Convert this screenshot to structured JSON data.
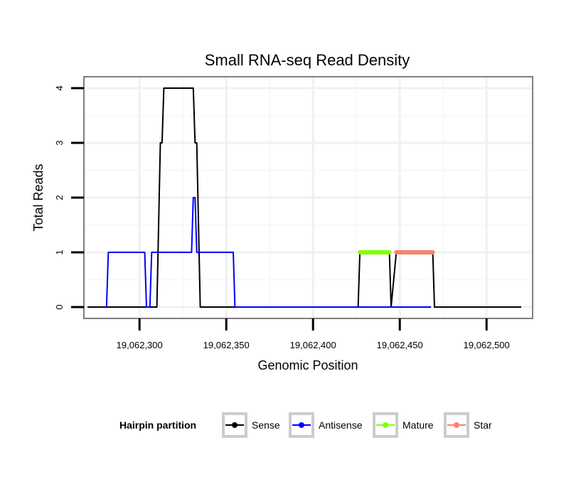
{
  "chart_data": {
    "type": "line",
    "title": "Small RNA-seq Read Density",
    "xlabel": "Genomic Position",
    "ylabel": "Total Reads",
    "xlim": [
      19062270,
      19062520
    ],
    "ylim": [
      0,
      4
    ],
    "x_ticks": [
      19062300,
      19062350,
      19062400,
      19062450,
      19062500
    ],
    "x_tick_labels": [
      "19,062,300",
      "19,062,350",
      "19,062,400",
      "19,062,450",
      "19,062,500"
    ],
    "y_ticks": [
      0,
      1,
      2,
      3,
      4
    ],
    "y_tick_labels": [
      "0",
      "1",
      "2",
      "3",
      "4"
    ],
    "legend_title": "Hairpin partition",
    "legend_position": "bottom",
    "series": [
      {
        "name": "Sense",
        "color": "#000000",
        "x": [
          19062270,
          19062310,
          19062312,
          19062313,
          19062314,
          19062316,
          19062331,
          19062332,
          19062333,
          19062335,
          19062426,
          19062427,
          19062444,
          19062445,
          19062448,
          19062469,
          19062470,
          19062520
        ],
        "y": [
          0,
          0,
          3,
          3,
          4,
          4,
          4,
          3,
          3,
          0,
          0,
          1,
          1,
          0,
          1,
          1,
          0,
          0
        ]
      },
      {
        "name": "Antisense",
        "color": "#0000ff",
        "x": [
          19062281,
          19062282,
          19062303,
          19062304,
          19062306,
          19062307,
          19062330,
          19062331,
          19062332,
          19062333,
          19062354,
          19062355,
          19062468
        ],
        "y": [
          0,
          1,
          1,
          0,
          0,
          1,
          1,
          2,
          2,
          1,
          1,
          0,
          0
        ]
      },
      {
        "name": "Mature",
        "color": "#7fff00",
        "x": [
          19062427,
          19062444
        ],
        "y": [
          1,
          1
        ]
      },
      {
        "name": "Star",
        "color": "#fa8072",
        "x": [
          19062448,
          19062469
        ],
        "y": [
          1,
          1
        ]
      }
    ]
  }
}
